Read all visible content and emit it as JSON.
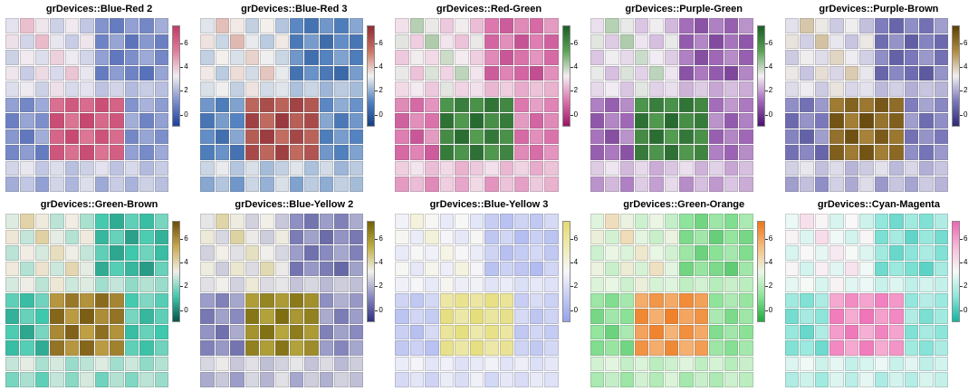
{
  "figure": {
    "background": "#ffffff",
    "grid_border_color": "rgba(110,110,110,0.28)"
  },
  "chart_data": {
    "type": "heatmap",
    "layout": {
      "panel_rows": 2,
      "panel_cols": 5,
      "legend_position": "right"
    },
    "grid": {
      "rows": 11,
      "cols": 11
    },
    "value_domain": [
      -1,
      7.5
    ],
    "legend_ticks": [
      0,
      2,
      4,
      6
    ],
    "matrix": [
      [
        3.0,
        4.1,
        3.4,
        2.6,
        3.3,
        2.4,
        1.2,
        0.6,
        1.5,
        0.9,
        1.8
      ],
      [
        3.5,
        2.7,
        4.2,
        3.1,
        2.5,
        3.4,
        0.8,
        1.6,
        0.4,
        1.3,
        0.7
      ],
      [
        2.6,
        3.3,
        2.9,
        3.8,
        3.2,
        2.7,
        1.5,
        0.5,
        1.1,
        1.7,
        0.9
      ],
      [
        3.4,
        2.5,
        3.6,
        2.8,
        4.0,
        3.1,
        0.6,
        1.4,
        0.8,
        0.3,
        1.6
      ],
      [
        2.9,
        3.2,
        2.6,
        3.5,
        2.8,
        3.0,
        2.3,
        2.7,
        2.1,
        2.5,
        2.2
      ],
      [
        1.5,
        0.9,
        1.7,
        5.8,
        6.5,
        5.9,
        6.8,
        6.2,
        1.2,
        1.9,
        1.4
      ],
      [
        0.7,
        1.6,
        1.1,
        6.9,
        5.7,
        7.1,
        6.0,
        6.6,
        1.8,
        0.8,
        1.5
      ],
      [
        1.3,
        0.5,
        1.8,
        6.1,
        7.0,
        5.6,
        6.7,
        5.9,
        0.9,
        1.6,
        1.1
      ],
      [
        0.9,
        1.4,
        0.6,
        6.6,
        5.8,
        6.9,
        5.7,
        6.3,
        1.5,
        1.0,
        1.7
      ],
      [
        2.7,
        3.1,
        2.4,
        2.9,
        2.2,
        2.6,
        3.0,
        2.3,
        2.8,
        2.1,
        2.5
      ],
      [
        1.8,
        2.4,
        1.5,
        2.7,
        2.0,
        2.9,
        1.7,
        2.5,
        1.9,
        2.6,
        2.2
      ]
    ],
    "panels": [
      {
        "title": "grDevices::Blue-Red 2",
        "palette": [
          "#1D3FA0",
          "#7E90CC",
          "#F0EDF2",
          "#E07D9B",
          "#C13A66"
        ]
      },
      {
        "title": "grDevices::Blue-Red 3",
        "palette": [
          "#143E80",
          "#5584C2",
          "#F3F2F0",
          "#C97566",
          "#8F2B35"
        ]
      },
      {
        "title": "grDevices::Red-Green",
        "palette": [
          "#9C1368",
          "#DC74AC",
          "#F5EEF2",
          "#5AA355",
          "#1B5E27"
        ]
      },
      {
        "title": "grDevices::Purple-Green",
        "palette": [
          "#47136E",
          "#A168B8",
          "#F3EFF4",
          "#5AA355",
          "#1B5E27"
        ]
      },
      {
        "title": "grDevices::Purple-Brown",
        "palette": [
          "#2E2A75",
          "#7B79BC",
          "#F1EFF2",
          "#B08A3E",
          "#5C3F05"
        ]
      },
      {
        "title": "grDevices::Green-Brown",
        "palette": [
          "#04544A",
          "#3FC9AD",
          "#F2EFE8",
          "#C9A94B",
          "#6B4C08"
        ]
      },
      {
        "title": "grDevices::Blue-Yellow 2",
        "palette": [
          "#31317E",
          "#8A8BC0",
          "#F2F1EC",
          "#BFAE45",
          "#716005"
        ]
      },
      {
        "title": "grDevices::Blue-Yellow 3",
        "palette": [
          "#95A2EA",
          "#C6CCF3",
          "#F7F7F9",
          "#EFEAB2",
          "#E3DB70"
        ]
      },
      {
        "title": "grDevices::Green-Orange",
        "palette": [
          "#21A93F",
          "#8CE398",
          "#EAF6E6",
          "#F6BB80",
          "#EE7518"
        ]
      },
      {
        "title": "grDevices::Cyan-Magenta",
        "palette": [
          "#0FB5A3",
          "#8FE6DB",
          "#F7FAF8",
          "#F7B8D8",
          "#EE66B2"
        ]
      }
    ]
  }
}
